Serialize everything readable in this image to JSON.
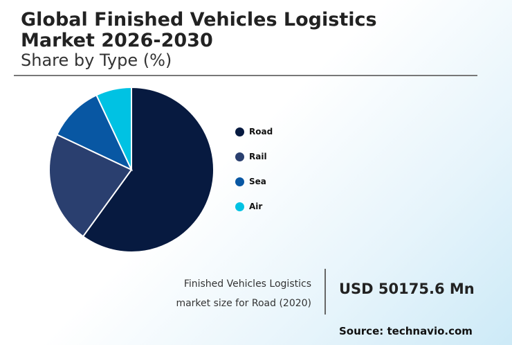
{
  "header": {
    "title": "Global Finished Vehicles Logistics Market 2026-2030",
    "subtitle": "Share by Type (%)"
  },
  "chart_data": {
    "type": "pie",
    "categories": [
      "Road",
      "Rail",
      "Sea",
      "Air"
    ],
    "values": [
      60,
      22,
      11,
      7
    ],
    "colors": [
      "#071a40",
      "#2a3f6f",
      "#0857a3",
      "#00c2e3"
    ],
    "legend_position": "right"
  },
  "footer": {
    "caption_line1": "Finished Vehicles Logistics",
    "caption_line2": "market size for Road (2020)",
    "value": "USD 50175.6 Mn",
    "source": "Source: technavio.com"
  }
}
